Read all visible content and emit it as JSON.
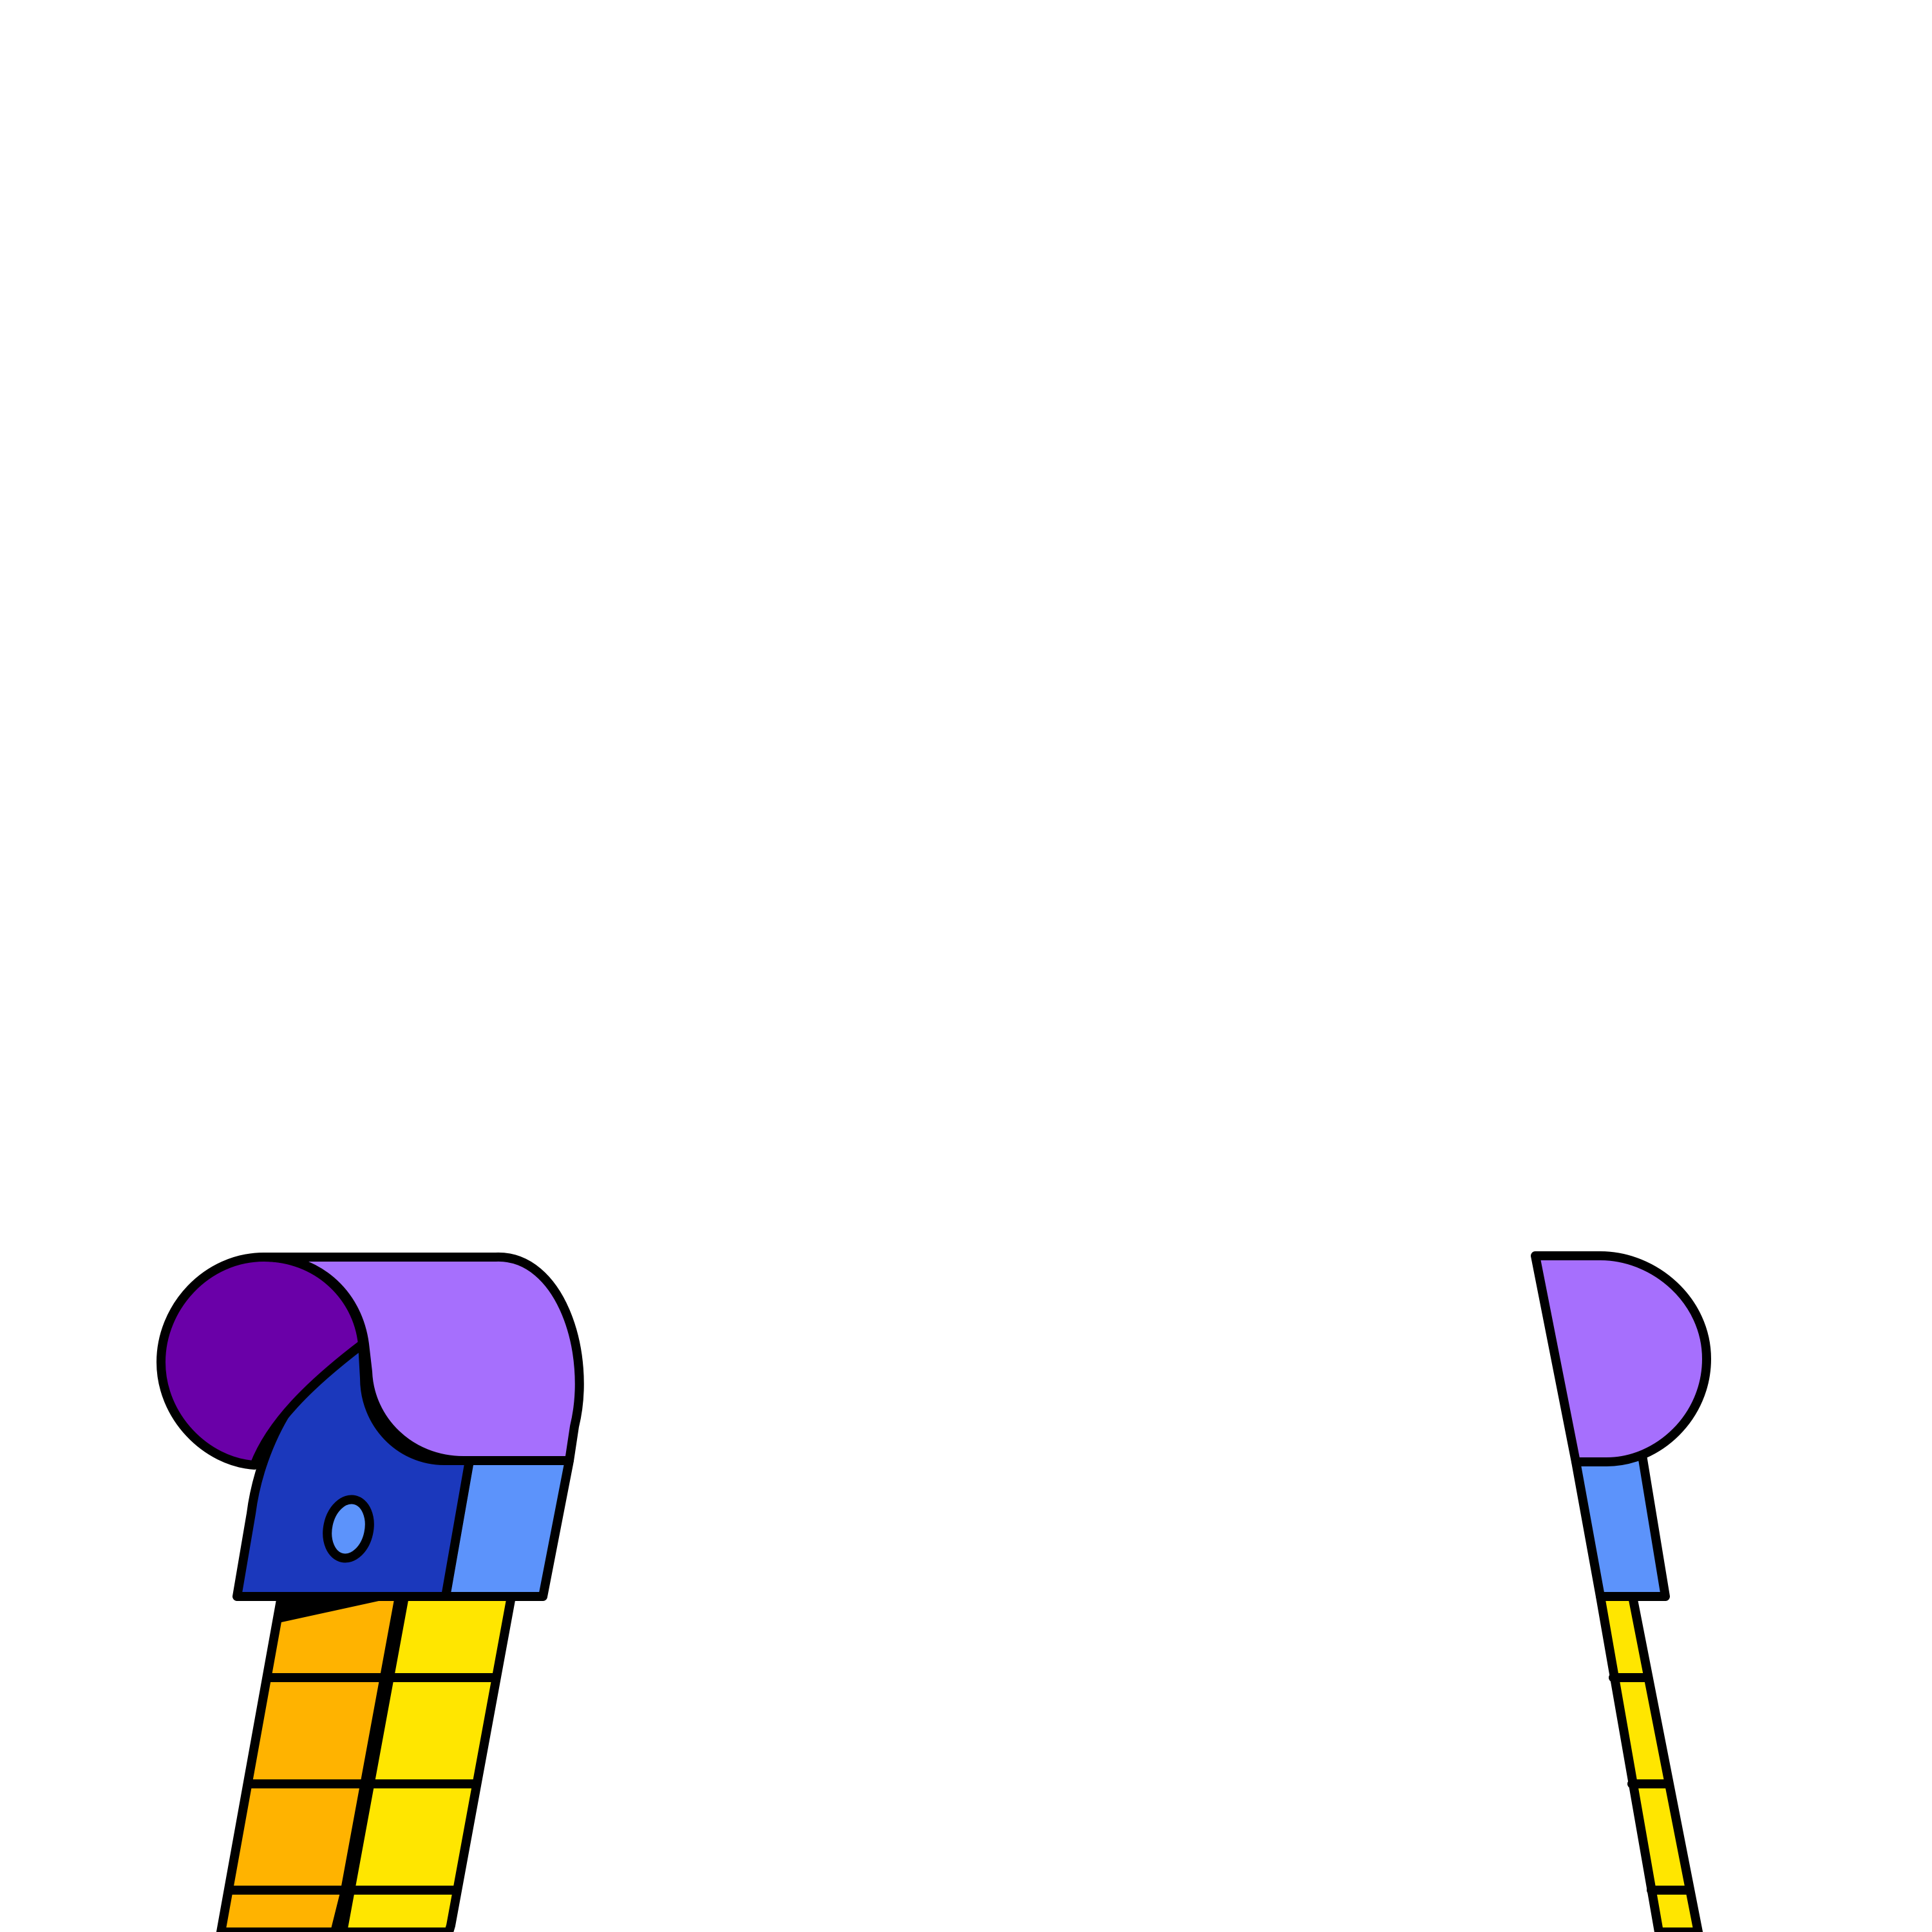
{
  "scene": {
    "background": "#ffffff",
    "outline_color": "#000000",
    "colors": {
      "dark_purple": "#6a00a8",
      "light_purple": "#a66ffd",
      "royal_blue": "#1b38bc",
      "sky_blue": "#5c93fb",
      "orange": "#ffb300",
      "yellow": "#ffe600",
      "shadow": "#000000"
    },
    "objects": [
      {
        "name": "left-chimney",
        "icon": "decorative-chimney-icon",
        "segment_count": 4
      },
      {
        "name": "right-chimney",
        "icon": "decorative-chimney-icon",
        "segment_count": 4
      }
    ]
  }
}
